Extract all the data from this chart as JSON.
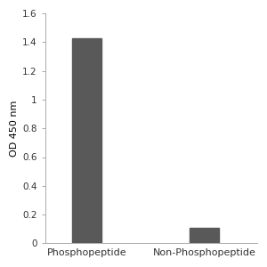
{
  "categories": [
    "Phosphopeptide",
    "Non-Phosphopeptide"
  ],
  "values": [
    1.43,
    0.11
  ],
  "bar_color": "#595959",
  "bar_width": 0.5,
  "ylabel": "OD 450 nm",
  "ylim": [
    0,
    1.6
  ],
  "yticks": [
    0,
    0.2,
    0.4,
    0.6,
    0.8,
    1.0,
    1.2,
    1.4,
    1.6
  ],
  "ytick_labels": [
    "0",
    "0.2",
    "0.4",
    "0.6",
    "0.8",
    "1",
    "1.2",
    "1.4",
    "1.6"
  ],
  "ylabel_fontsize": 8,
  "tick_fontsize": 7.5,
  "xlabel_fontsize": 8,
  "background_color": "#ffffff",
  "spine_color": "#aaaaaa"
}
